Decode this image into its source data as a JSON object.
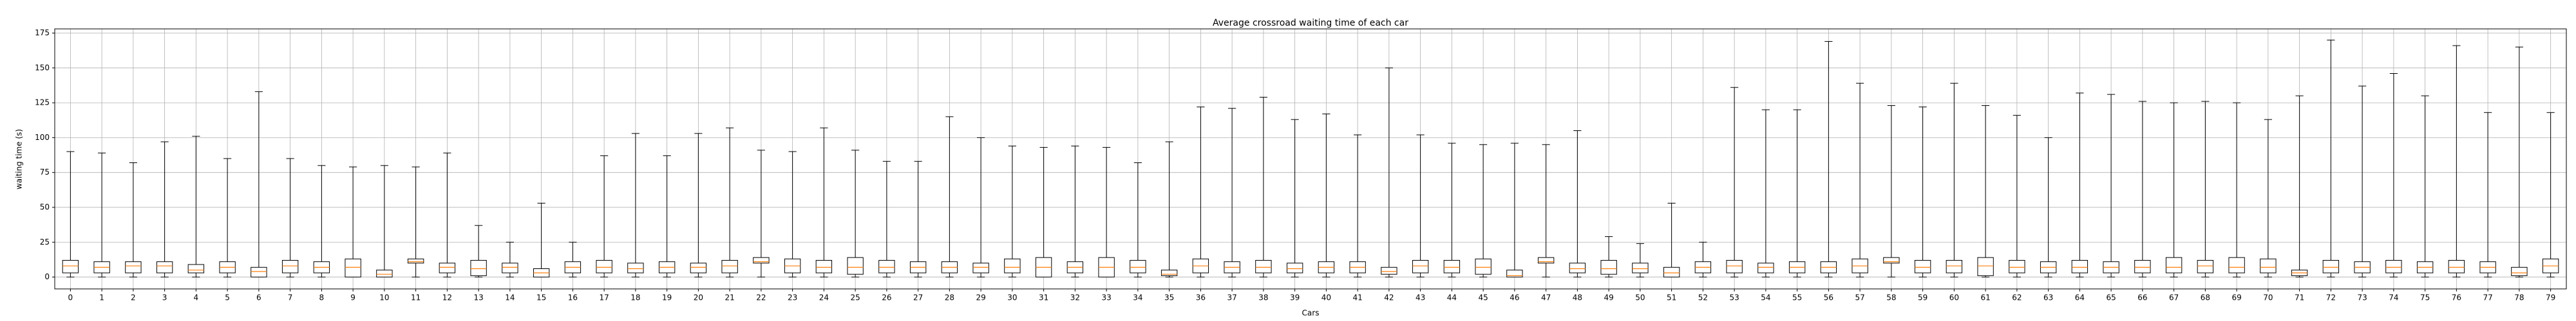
{
  "chart_data": {
    "type": "box",
    "title": "Average crossroad waiting time of each car",
    "x_label": "Cars",
    "y_label": "waiting time (s)",
    "categories": [
      "0",
      "1",
      "2",
      "3",
      "4",
      "5",
      "6",
      "7",
      "8",
      "9",
      "10",
      "11",
      "12",
      "13",
      "14",
      "15",
      "16",
      "17",
      "18",
      "19",
      "20",
      "21",
      "22",
      "23",
      "24",
      "25",
      "26",
      "27",
      "28",
      "29",
      "30",
      "31",
      "32",
      "33",
      "34",
      "35",
      "36",
      "37",
      "38",
      "39",
      "40",
      "41",
      "42",
      "43",
      "44",
      "45",
      "46",
      "47",
      "48",
      "49",
      "50",
      "51",
      "52",
      "53",
      "54",
      "55",
      "56",
      "57",
      "58",
      "59",
      "60",
      "61",
      "62",
      "63",
      "64",
      "65",
      "66",
      "67",
      "68",
      "69",
      "70",
      "71",
      "72",
      "73",
      "74",
      "75",
      "76",
      "77",
      "78",
      "79"
    ],
    "whislo": [
      0,
      0,
      0,
      0,
      0,
      0,
      0,
      0,
      0,
      0,
      0,
      0,
      0,
      0,
      0,
      0,
      0,
      0,
      0,
      0,
      0,
      0,
      0,
      0,
      0,
      0,
      0,
      0,
      0,
      0,
      0,
      0,
      0,
      0,
      0,
      0,
      0,
      0,
      0,
      0,
      0,
      0,
      0,
      0,
      0,
      0,
      0,
      0,
      0,
      0,
      0,
      0,
      0,
      0,
      0,
      0,
      0,
      0,
      0,
      0,
      0,
      0,
      0,
      0,
      0,
      0,
      0,
      0,
      0,
      0,
      0,
      0,
      0,
      0,
      0,
      0,
      0,
      0,
      0,
      0
    ],
    "q1": [
      3,
      3,
      3,
      3,
      3,
      3,
      0,
      3,
      3,
      0,
      0,
      10,
      3,
      1,
      3,
      0,
      3,
      3,
      3,
      3,
      3,
      3,
      10,
      3,
      3,
      2,
      3,
      3,
      3,
      3,
      3,
      0,
      3,
      0,
      3,
      1,
      3,
      3,
      3,
      3,
      3,
      3,
      2,
      3,
      3,
      2,
      0,
      10,
      3,
      2,
      3,
      0,
      3,
      3,
      3,
      3,
      3,
      3,
      10,
      3,
      3,
      1,
      3,
      3,
      3,
      3,
      3,
      3,
      3,
      3,
      3,
      1,
      3,
      3,
      3,
      3,
      3,
      3,
      1,
      3
    ],
    "med": [
      8,
      7,
      8,
      8,
      5,
      7,
      4,
      8,
      7,
      7,
      2,
      11,
      7,
      6,
      7,
      3,
      7,
      7,
      6,
      7,
      7,
      8,
      11,
      8,
      7,
      7,
      7,
      7,
      7,
      7,
      7,
      7,
      7,
      7,
      7,
      2,
      8,
      7,
      7,
      6,
      7,
      7,
      4,
      8,
      7,
      7,
      1,
      11,
      6,
      6,
      6,
      3,
      7,
      8,
      7,
      7,
      7,
      8,
      11,
      7,
      8,
      8,
      7,
      7,
      7,
      7,
      7,
      7,
      8,
      7,
      7,
      3,
      7,
      7,
      7,
      7,
      7,
      7,
      3,
      8
    ],
    "q3": [
      12,
      11,
      11,
      11,
      9,
      11,
      7,
      12,
      11,
      13,
      5,
      13,
      10,
      12,
      10,
      6,
      11,
      12,
      10,
      11,
      10,
      12,
      14,
      13,
      12,
      14,
      12,
      11,
      11,
      10,
      13,
      14,
      11,
      14,
      12,
      5,
      13,
      11,
      12,
      10,
      11,
      11,
      7,
      12,
      12,
      13,
      5,
      14,
      10,
      12,
      10,
      7,
      11,
      12,
      10,
      11,
      11,
      13,
      14,
      12,
      12,
      14,
      12,
      11,
      12,
      11,
      12,
      14,
      12,
      14,
      13,
      5,
      12,
      11,
      12,
      11,
      12,
      11,
      7,
      13
    ],
    "whishi": [
      90,
      89,
      82,
      97,
      101,
      85,
      133,
      85,
      80,
      79,
      80,
      79,
      89,
      37,
      25,
      53,
      25,
      87,
      103,
      87,
      103,
      107,
      91,
      90,
      107,
      91,
      83,
      83,
      115,
      100,
      94,
      93,
      94,
      93,
      82,
      97,
      122,
      121,
      129,
      113,
      117,
      102,
      150,
      102,
      96,
      95,
      96,
      95,
      105,
      29,
      24,
      53,
      25,
      136,
      120,
      120,
      169,
      139,
      123,
      122,
      139,
      123,
      116,
      100,
      132,
      131,
      126,
      125,
      126,
      125,
      113,
      130,
      170,
      137,
      146,
      130,
      166,
      118,
      165,
      118
    ],
    "box_color": "#000000",
    "median_color": "#ff7f0e",
    "ylim": [
      -8.5,
      178
    ],
    "yticks": [
      0,
      25,
      50,
      75,
      100,
      125,
      150,
      175
    ],
    "grid": true
  }
}
